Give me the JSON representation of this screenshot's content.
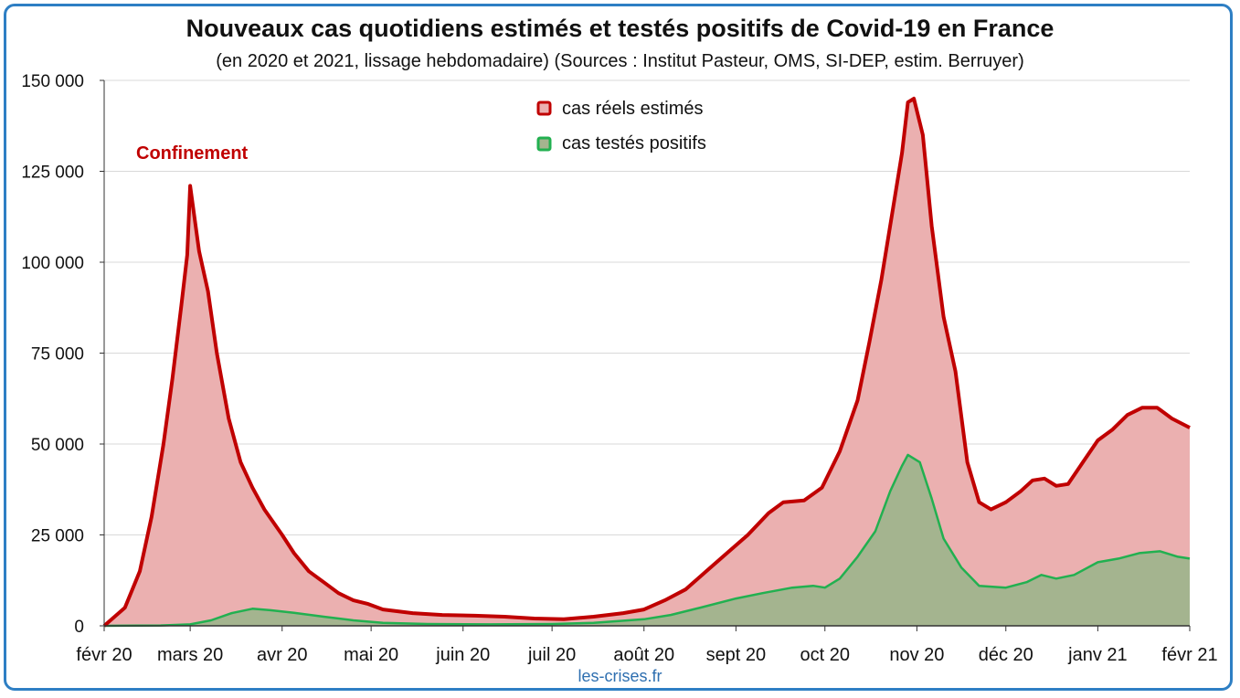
{
  "chart_data": {
    "type": "area",
    "title": "Nouveaux cas quotidiens estimés et testés positifs de Covid-19 en France",
    "subtitle": "(en 2020 et 2021, lissage hebdomadaire) (Sources : Institut Pasteur, OMS, SI-DEP, estim. Berruyer)",
    "source_note": "les-crises.fr",
    "annotation": "Confinement",
    "ylim": [
      0,
      150000
    ],
    "yticks": [
      0,
      25000,
      50000,
      75000,
      100000,
      125000,
      150000
    ],
    "ytick_labels": [
      "0",
      "25 000",
      "50 000",
      "75 000",
      "100 000",
      "125 000",
      "150 000"
    ],
    "xlim": [
      "2020-02-01",
      "2021-02-01"
    ],
    "xtick_labels": [
      "févr 20",
      "mars 20",
      "avr 20",
      "mai 20",
      "juin 20",
      "juil 20",
      "août 20",
      "sept 20",
      "oct 20",
      "nov 20",
      "déc 20",
      "janv 21",
      "févr 21"
    ],
    "xtick_dates": [
      "2020-02-01",
      "2020-03-01",
      "2020-04-01",
      "2020-05-01",
      "2020-06-01",
      "2020-07-01",
      "2020-08-01",
      "2020-09-01",
      "2020-10-01",
      "2020-11-01",
      "2020-12-01",
      "2021-01-01",
      "2021-02-01"
    ],
    "grid": true,
    "legend_position": "top-center",
    "colors": {
      "estimated_line": "#c00000",
      "estimated_fill": "#ebb0b0",
      "tested_line": "#22b050",
      "tested_fill": "#a4b48f",
      "axis": "#333333",
      "grid": "#d9d9d9",
      "frame": "#2e7fc4"
    },
    "series": [
      {
        "name": "cas réels estimés",
        "points": [
          [
            "2020-02-01",
            0
          ],
          [
            "2020-02-08",
            5000
          ],
          [
            "2020-02-13",
            15000
          ],
          [
            "2020-02-17",
            30000
          ],
          [
            "2020-02-21",
            50000
          ],
          [
            "2020-02-24",
            68000
          ],
          [
            "2020-02-27",
            88000
          ],
          [
            "2020-02-29",
            102000
          ],
          [
            "2020-03-01",
            121000
          ],
          [
            "2020-03-04",
            103000
          ],
          [
            "2020-03-07",
            92000
          ],
          [
            "2020-03-10",
            75000
          ],
          [
            "2020-03-14",
            57000
          ],
          [
            "2020-03-18",
            45000
          ],
          [
            "2020-03-22",
            38000
          ],
          [
            "2020-03-26",
            32000
          ],
          [
            "2020-04-01",
            25000
          ],
          [
            "2020-04-05",
            20000
          ],
          [
            "2020-04-10",
            15000
          ],
          [
            "2020-04-15",
            12000
          ],
          [
            "2020-04-20",
            9000
          ],
          [
            "2020-04-25",
            7000
          ],
          [
            "2020-04-30",
            6000
          ],
          [
            "2020-05-05",
            4500
          ],
          [
            "2020-05-15",
            3500
          ],
          [
            "2020-05-25",
            3000
          ],
          [
            "2020-06-05",
            2800
          ],
          [
            "2020-06-15",
            2500
          ],
          [
            "2020-06-25",
            2000
          ],
          [
            "2020-07-05",
            1800
          ],
          [
            "2020-07-15",
            2500
          ],
          [
            "2020-07-25",
            3500
          ],
          [
            "2020-08-01",
            4500
          ],
          [
            "2020-08-08",
            7000
          ],
          [
            "2020-08-15",
            10000
          ],
          [
            "2020-08-22",
            15000
          ],
          [
            "2020-08-29",
            20000
          ],
          [
            "2020-09-05",
            25000
          ],
          [
            "2020-09-12",
            31000
          ],
          [
            "2020-09-17",
            34000
          ],
          [
            "2020-09-24",
            34500
          ],
          [
            "2020-09-30",
            38000
          ],
          [
            "2020-10-06",
            48000
          ],
          [
            "2020-10-12",
            62000
          ],
          [
            "2020-10-16",
            78000
          ],
          [
            "2020-10-20",
            95000
          ],
          [
            "2020-10-24",
            115000
          ],
          [
            "2020-10-27",
            130000
          ],
          [
            "2020-10-29",
            144000
          ],
          [
            "2020-10-31",
            145000
          ],
          [
            "2020-11-03",
            135000
          ],
          [
            "2020-11-06",
            110000
          ],
          [
            "2020-11-10",
            85000
          ],
          [
            "2020-11-14",
            70000
          ],
          [
            "2020-11-18",
            45000
          ],
          [
            "2020-11-22",
            34000
          ],
          [
            "2020-11-26",
            32000
          ],
          [
            "2020-12-01",
            34000
          ],
          [
            "2020-12-06",
            37000
          ],
          [
            "2020-12-10",
            40000
          ],
          [
            "2020-12-14",
            40500
          ],
          [
            "2020-12-18",
            38500
          ],
          [
            "2020-12-22",
            39000
          ],
          [
            "2020-12-27",
            45000
          ],
          [
            "2021-01-01",
            51000
          ],
          [
            "2021-01-06",
            54000
          ],
          [
            "2021-01-11",
            58000
          ],
          [
            "2021-01-16",
            60000
          ],
          [
            "2021-01-21",
            60000
          ],
          [
            "2021-01-26",
            57000
          ],
          [
            "2021-02-01",
            54500
          ]
        ]
      },
      {
        "name": "cas testés positifs",
        "points": [
          [
            "2020-02-01",
            0
          ],
          [
            "2020-02-20",
            100
          ],
          [
            "2020-03-01",
            400
          ],
          [
            "2020-03-08",
            1500
          ],
          [
            "2020-03-15",
            3500
          ],
          [
            "2020-03-22",
            4700
          ],
          [
            "2020-03-28",
            4300
          ],
          [
            "2020-04-05",
            3600
          ],
          [
            "2020-04-15",
            2500
          ],
          [
            "2020-04-25",
            1500
          ],
          [
            "2020-05-05",
            800
          ],
          [
            "2020-05-20",
            500
          ],
          [
            "2020-06-10",
            400
          ],
          [
            "2020-07-01",
            500
          ],
          [
            "2020-07-15",
            800
          ],
          [
            "2020-08-01",
            1800
          ],
          [
            "2020-08-10",
            3000
          ],
          [
            "2020-08-20",
            5000
          ],
          [
            "2020-09-01",
            7500
          ],
          [
            "2020-09-10",
            9000
          ],
          [
            "2020-09-20",
            10500
          ],
          [
            "2020-09-27",
            11000
          ],
          [
            "2020-10-01",
            10500
          ],
          [
            "2020-10-06",
            13000
          ],
          [
            "2020-10-12",
            19000
          ],
          [
            "2020-10-18",
            26000
          ],
          [
            "2020-10-23",
            37000
          ],
          [
            "2020-10-27",
            44000
          ],
          [
            "2020-10-29",
            47000
          ],
          [
            "2020-11-02",
            45000
          ],
          [
            "2020-11-06",
            35000
          ],
          [
            "2020-11-10",
            24000
          ],
          [
            "2020-11-16",
            16000
          ],
          [
            "2020-11-22",
            11000
          ],
          [
            "2020-12-01",
            10500
          ],
          [
            "2020-12-08",
            12000
          ],
          [
            "2020-12-13",
            14000
          ],
          [
            "2020-12-18",
            13000
          ],
          [
            "2020-12-24",
            14000
          ],
          [
            "2021-01-01",
            17500
          ],
          [
            "2021-01-08",
            18500
          ],
          [
            "2021-01-15",
            20000
          ],
          [
            "2021-01-22",
            20500
          ],
          [
            "2021-01-28",
            19000
          ],
          [
            "2021-02-01",
            18500
          ]
        ]
      }
    ]
  }
}
